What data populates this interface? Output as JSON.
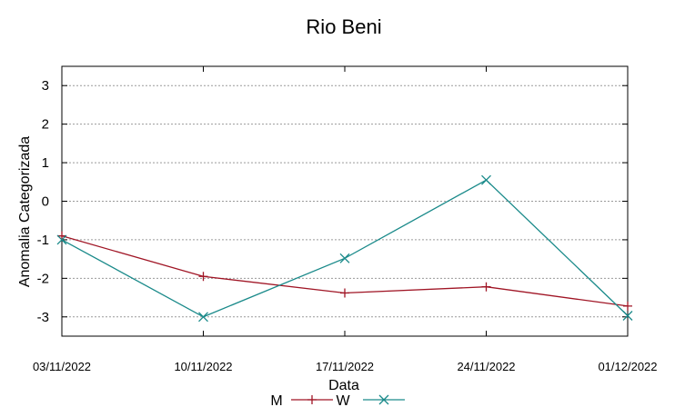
{
  "chart_data": {
    "type": "line",
    "title": "Rio Beni",
    "xlabel": "Data",
    "ylabel": "Anomalia Categorizada",
    "categories": [
      "03/11/2022",
      "10/11/2022",
      "17/11/2022",
      "24/11/2022",
      "01/12/2022"
    ],
    "ylim": [
      -3.5,
      3.5
    ],
    "yticks": [
      3,
      2,
      1,
      0,
      -1,
      -2,
      -3
    ],
    "grid": true,
    "legend_position": "bottom",
    "series": [
      {
        "name": "M",
        "values": [
          -0.9,
          -1.95,
          -2.38,
          -2.22,
          -2.72
        ],
        "color": "#a01525",
        "marker": "plus"
      },
      {
        "name": "W",
        "values": [
          -1.0,
          -3.0,
          -1.48,
          0.55,
          -2.97
        ],
        "color": "#1a8a8a",
        "marker": "cross"
      }
    ]
  }
}
